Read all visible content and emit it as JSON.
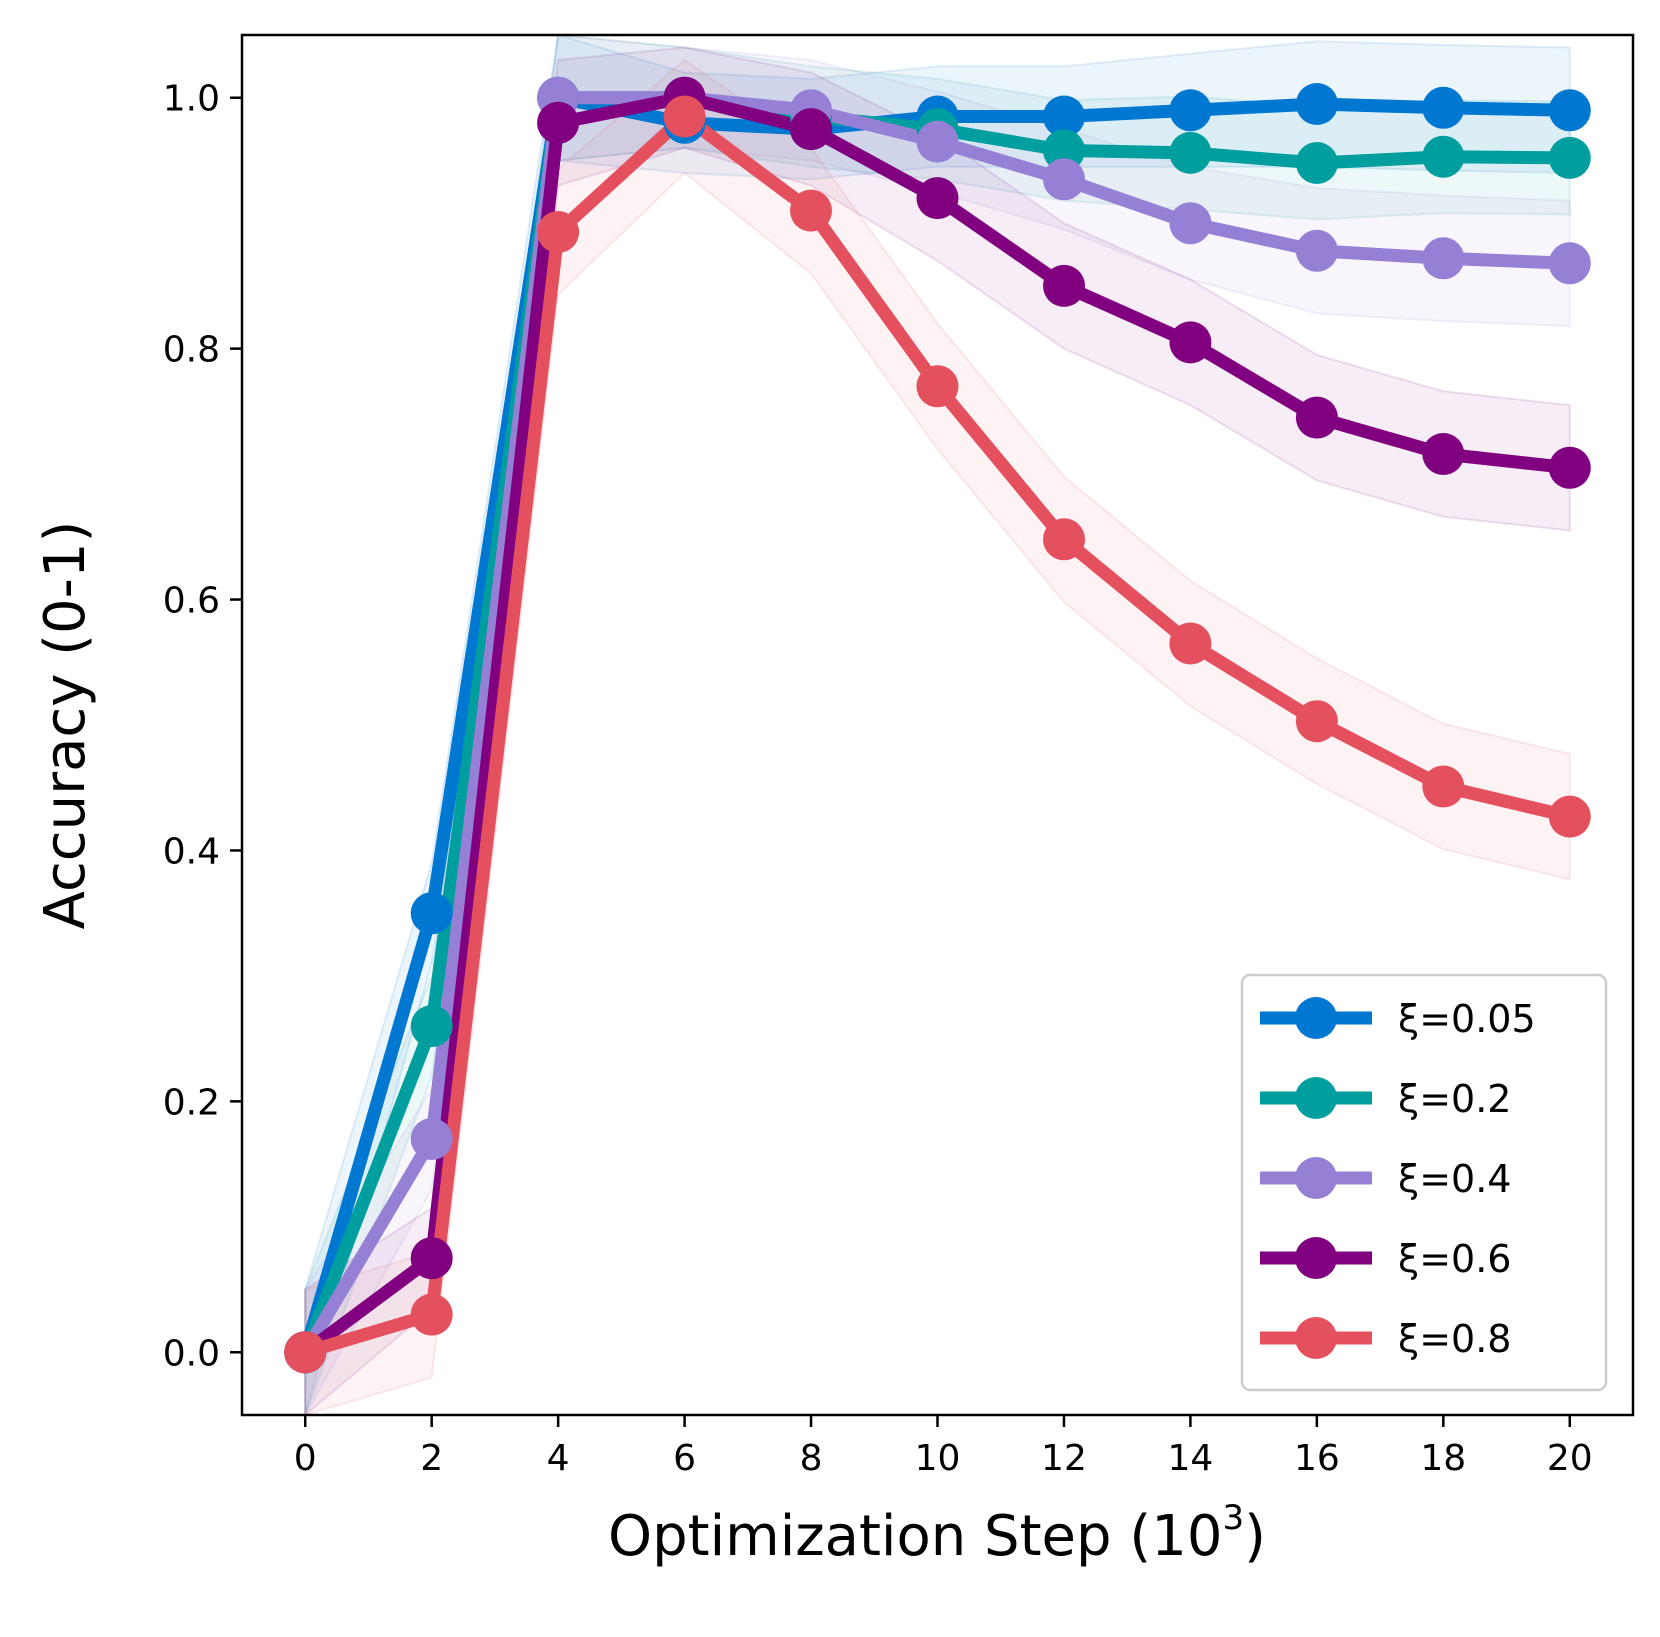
{
  "chart_data": {
    "type": "line",
    "xlabel": "Optimization Step (10",
    "xlabel_sup": "3",
    "xlabel_close": ")",
    "ylabel": "Accuracy (0-1)",
    "xlim": [
      -1,
      21
    ],
    "ylim": [
      -0.05,
      1.05
    ],
    "xticks": [
      "0",
      "2",
      "4",
      "6",
      "8",
      "10",
      "12",
      "14",
      "16",
      "18",
      "20"
    ],
    "yticks": [
      "0.0",
      "0.2",
      "0.4",
      "0.6",
      "0.8",
      "1.0"
    ],
    "legend_position": "lower right",
    "x": [
      0,
      2,
      4,
      6,
      8,
      10,
      12,
      14,
      16,
      18,
      20
    ],
    "series": [
      {
        "name": "ξ=0.05",
        "color": "#0077D1",
        "values": [
          0.0,
          0.35,
          1.0,
          0.98,
          0.975,
          0.985,
          0.985,
          0.99,
          0.995,
          0.992,
          0.99
        ],
        "band": [
          0.05,
          0.04,
          0.05,
          0.04,
          0.04,
          0.04,
          0.04,
          0.045,
          0.05,
          0.05,
          0.05
        ]
      },
      {
        "name": "ξ=0.2",
        "color": "#009E9E",
        "values": [
          0.0,
          0.26,
          1.0,
          1.0,
          0.985,
          0.975,
          0.958,
          0.956,
          0.948,
          0.953,
          0.952
        ],
        "band": [
          0.05,
          0.04,
          0.05,
          0.04,
          0.04,
          0.04,
          0.04,
          0.045,
          0.045,
          0.045,
          0.045
        ]
      },
      {
        "name": "ξ=0.4",
        "color": "#9580D5",
        "values": [
          0.0,
          0.17,
          1.0,
          1.0,
          0.99,
          0.965,
          0.935,
          0.9,
          0.878,
          0.872,
          0.868
        ],
        "band": [
          0.05,
          0.04,
          0.05,
          0.04,
          0.04,
          0.04,
          0.04,
          0.045,
          0.05,
          0.05,
          0.05
        ]
      },
      {
        "name": "ξ=0.6",
        "color": "#800080",
        "values": [
          0.0,
          0.075,
          0.98,
          1.0,
          0.975,
          0.92,
          0.85,
          0.805,
          0.745,
          0.716,
          0.705
        ],
        "band": [
          0.05,
          0.04,
          0.05,
          0.04,
          0.045,
          0.05,
          0.05,
          0.05,
          0.05,
          0.05,
          0.05
        ]
      },
      {
        "name": "ξ=0.8",
        "color": "#E5505E",
        "values": [
          0.0,
          0.03,
          0.893,
          0.985,
          0.91,
          0.77,
          0.648,
          0.565,
          0.503,
          0.451,
          0.427
        ],
        "band": [
          0.05,
          0.05,
          0.05,
          0.045,
          0.05,
          0.05,
          0.05,
          0.05,
          0.05,
          0.05,
          0.05
        ]
      }
    ]
  }
}
